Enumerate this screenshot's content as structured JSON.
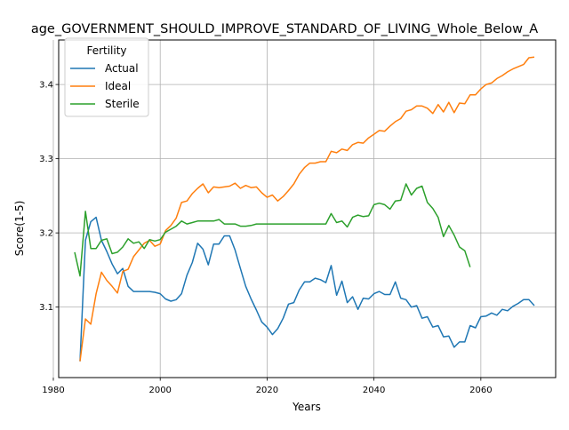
{
  "chart_data": {
    "type": "line",
    "title": "age_GOVERNMENT_SHOULD_IMPROVE_STANDARD_OF_LIVING_Whole_Below_A",
    "xlabel": "Years",
    "ylabel": "Score(1-5)",
    "xlim": [
      1981,
      2074
    ],
    "ylim": [
      3.005,
      3.46
    ],
    "xticks": [
      1980,
      2000,
      2020,
      2040,
      2060
    ],
    "yticks": [
      3.1,
      3.2,
      3.3,
      3.4
    ],
    "grid": true,
    "legend": {
      "title": "Fertility",
      "placement": "top-left"
    },
    "colors": {
      "Actual": "#1f77b4",
      "Ideal": "#ff7f0e",
      "Sterile": "#2ca02c"
    },
    "series": [
      {
        "name": "Actual",
        "x": [
          1985,
          1986,
          1987,
          1988,
          1989,
          1990,
          1991,
          1992,
          1993,
          1994,
          1995,
          1996,
          1997,
          1998,
          1999,
          2000,
          2001,
          2002,
          2003,
          2004,
          2005,
          2006,
          2007,
          2008,
          2009,
          2010,
          2011,
          2012,
          2013,
          2014,
          2015,
          2016,
          2017,
          2018,
          2019,
          2020,
          2021,
          2022,
          2023,
          2024,
          2025,
          2026,
          2027,
          2028,
          2029,
          2030,
          2031,
          2032,
          2033,
          2034,
          2035,
          2036,
          2037,
          2038,
          2039,
          2040,
          2041,
          2042,
          2043,
          2044,
          2045,
          2046,
          2047,
          2048,
          2049,
          2050,
          2051,
          2052,
          2053,
          2054,
          2055,
          2056,
          2057,
          2058,
          2059,
          2060,
          2061,
          2062,
          2063,
          2064,
          2065,
          2066,
          2067,
          2068,
          2069,
          2070
        ],
        "y": [
          3.027,
          3.19,
          3.215,
          3.221,
          3.19,
          3.175,
          3.158,
          3.145,
          3.152,
          3.128,
          3.121,
          3.121,
          3.121,
          3.121,
          3.12,
          3.118,
          3.111,
          3.108,
          3.11,
          3.118,
          3.143,
          3.16,
          3.186,
          3.178,
          3.157,
          3.185,
          3.185,
          3.196,
          3.196,
          3.177,
          3.152,
          3.128,
          3.111,
          3.096,
          3.08,
          3.073,
          3.063,
          3.071,
          3.085,
          3.104,
          3.106,
          3.123,
          3.134,
          3.134,
          3.139,
          3.137,
          3.133,
          3.156,
          3.116,
          3.135,
          3.106,
          3.114,
          3.097,
          3.112,
          3.111,
          3.118,
          3.121,
          3.117,
          3.117,
          3.134,
          3.112,
          3.11,
          3.1,
          3.102,
          3.085,
          3.087,
          3.073,
          3.075,
          3.06,
          3.061,
          3.046,
          3.053,
          3.053,
          3.075,
          3.072,
          3.087,
          3.088,
          3.092,
          3.089,
          3.097,
          3.095,
          3.101,
          3.105,
          3.11,
          3.11,
          3.102
        ]
      },
      {
        "name": "Ideal",
        "x": [
          1985,
          1986,
          1987,
          1988,
          1989,
          1990,
          1991,
          1992,
          1993,
          1994,
          1995,
          1996,
          1997,
          1998,
          1999,
          2000,
          2001,
          2002,
          2003,
          2004,
          2005,
          2006,
          2007,
          2008,
          2009,
          2010,
          2011,
          2012,
          2013,
          2014,
          2015,
          2016,
          2017,
          2018,
          2019,
          2020,
          2021,
          2022,
          2023,
          2024,
          2025,
          2026,
          2027,
          2028,
          2029,
          2030,
          2031,
          2032,
          2033,
          2034,
          2035,
          2036,
          2037,
          2038,
          2039,
          2040,
          2041,
          2042,
          2043,
          2044,
          2045,
          2046,
          2047,
          2048,
          2049,
          2050,
          2051,
          2052,
          2053,
          2054,
          2055,
          2056,
          2057,
          2058,
          2059,
          2060,
          2061,
          2062,
          2063,
          2064,
          2065,
          2066,
          2067,
          2068,
          2069,
          2070
        ],
        "y": [
          3.027,
          3.084,
          3.077,
          3.118,
          3.147,
          3.136,
          3.128,
          3.119,
          3.148,
          3.151,
          3.168,
          3.177,
          3.186,
          3.19,
          3.182,
          3.185,
          3.203,
          3.21,
          3.22,
          3.241,
          3.243,
          3.253,
          3.26,
          3.266,
          3.254,
          3.262,
          3.261,
          3.262,
          3.263,
          3.267,
          3.26,
          3.264,
          3.261,
          3.262,
          3.254,
          3.248,
          3.251,
          3.243,
          3.249,
          3.257,
          3.266,
          3.279,
          3.288,
          3.294,
          3.294,
          3.296,
          3.296,
          3.31,
          3.308,
          3.313,
          3.311,
          3.319,
          3.322,
          3.321,
          3.328,
          3.333,
          3.338,
          3.337,
          3.344,
          3.35,
          3.354,
          3.364,
          3.366,
          3.371,
          3.371,
          3.368,
          3.361,
          3.373,
          3.363,
          3.376,
          3.362,
          3.375,
          3.374,
          3.386,
          3.386,
          3.394,
          3.4,
          3.402,
          3.408,
          3.412,
          3.417,
          3.421,
          3.424,
          3.427,
          3.436,
          3.437
        ]
      },
      {
        "name": "Sterile",
        "x": [
          1984,
          1985,
          1986,
          1987,
          1988,
          1989,
          1990,
          1991,
          1992,
          1993,
          1994,
          1995,
          1996,
          1997,
          1998,
          1999,
          2000,
          2001,
          2002,
          2003,
          2004,
          2005,
          2006,
          2007,
          2008,
          2009,
          2010,
          2011,
          2012,
          2013,
          2014,
          2015,
          2016,
          2017,
          2018,
          2019,
          2020,
          2021,
          2022,
          2023,
          2024,
          2025,
          2026,
          2027,
          2028,
          2029,
          2030,
          2031,
          2032,
          2033,
          2034,
          2035,
          2036,
          2037,
          2038,
          2039,
          2040,
          2041,
          2042,
          2043,
          2044,
          2045,
          2046,
          2047,
          2048,
          2049,
          2050,
          2051,
          2052,
          2053,
          2054,
          2055,
          2056,
          2057,
          2058
        ],
        "y": [
          3.174,
          3.142,
          3.229,
          3.179,
          3.179,
          3.19,
          3.192,
          3.172,
          3.174,
          3.181,
          3.192,
          3.186,
          3.188,
          3.179,
          3.191,
          3.189,
          3.191,
          3.201,
          3.205,
          3.209,
          3.216,
          3.212,
          3.214,
          3.216,
          3.216,
          3.216,
          3.216,
          3.218,
          3.212,
          3.212,
          3.212,
          3.209,
          3.209,
          3.21,
          3.212,
          3.212,
          3.212,
          3.212,
          3.212,
          3.212,
          3.212,
          3.212,
          3.212,
          3.212,
          3.212,
          3.212,
          3.212,
          3.212,
          3.226,
          3.214,
          3.216,
          3.208,
          3.221,
          3.224,
          3.222,
          3.223,
          3.238,
          3.24,
          3.238,
          3.232,
          3.243,
          3.244,
          3.266,
          3.251,
          3.26,
          3.263,
          3.241,
          3.233,
          3.221,
          3.195,
          3.21,
          3.197,
          3.181,
          3.176,
          3.154
        ]
      }
    ]
  }
}
